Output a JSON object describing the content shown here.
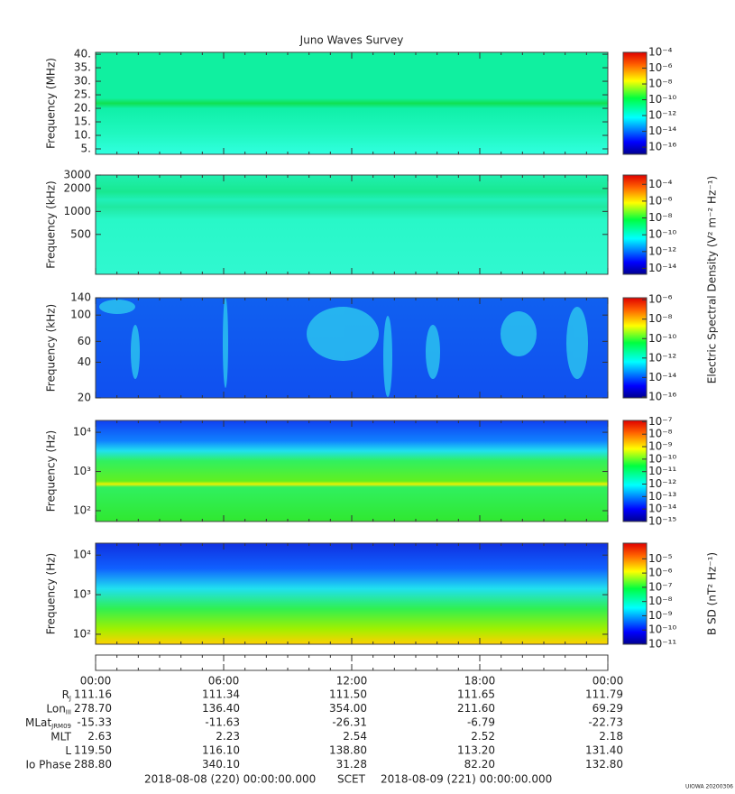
{
  "chart_data": {
    "type": "spectrogram",
    "title": "Juno Waves Survey",
    "xlim": [
      0,
      24
    ],
    "xticks": [
      {
        "value": 0,
        "label": "00:00"
      },
      {
        "value": 6,
        "label": "06:00"
      },
      {
        "value": 12,
        "label": "12:00"
      },
      {
        "value": 18,
        "label": "18:00"
      },
      {
        "value": 24,
        "label": "00:00"
      }
    ],
    "xminor_step": 1,
    "panels": [
      {
        "ylabel": "Frequency (MHz)",
        "yscale": "linear",
        "ylim": [
          3,
          40.7
        ],
        "yticks": [
          {
            "value": 5,
            "label": "5."
          },
          {
            "value": 10,
            "label": "10."
          },
          {
            "value": 15,
            "label": "15."
          },
          {
            "value": 20,
            "label": "20."
          },
          {
            "value": 25,
            "label": "25."
          },
          {
            "value": 30,
            "label": "30."
          },
          {
            "value": 35,
            "label": "35."
          },
          {
            "value": 40,
            "label": "40."
          }
        ],
        "clim": [
          -16.9,
          -4
        ],
        "cticks": [
          {
            "value": -4,
            "label": "10⁻⁴"
          },
          {
            "value": -6,
            "label": "10⁻⁶"
          },
          {
            "value": -8,
            "label": "10⁻⁸"
          },
          {
            "value": -10,
            "label": "10⁻¹⁰"
          },
          {
            "value": -12,
            "label": "10⁻¹²"
          },
          {
            "value": -14,
            "label": "10⁻¹⁴"
          },
          {
            "value": -16,
            "label": "10⁻¹⁶"
          }
        ]
      },
      {
        "ylabel": "Frequency (kHz)",
        "yscale": "log",
        "ylim": [
          150,
          3000
        ],
        "yticks": [
          500,
          1000,
          2000,
          3000
        ],
        "clim": [
          -14.7,
          -2.9
        ],
        "cticks": [
          {
            "value": -4,
            "label": "10⁻⁴"
          },
          {
            "value": -6,
            "label": "10⁻⁶"
          },
          {
            "value": -8,
            "label": "10⁻⁸"
          },
          {
            "value": -10,
            "label": "10⁻¹⁰"
          },
          {
            "value": -12,
            "label": "10⁻¹²"
          },
          {
            "value": -14,
            "label": "10⁻¹⁴"
          }
        ]
      },
      {
        "ylabel": "Frequency (kHz)",
        "yscale": "log",
        "ylim": [
          20,
          140
        ],
        "yticks": [
          20,
          40,
          60,
          100,
          140
        ],
        "clim": [
          -16.1,
          -5.8
        ],
        "cticks": [
          {
            "value": -6,
            "label": "10⁻⁶"
          },
          {
            "value": -8,
            "label": "10⁻⁸"
          },
          {
            "value": -10,
            "label": "10⁻¹⁰"
          },
          {
            "value": -12,
            "label": "10⁻¹²"
          },
          {
            "value": -14,
            "label": "10⁻¹⁴"
          },
          {
            "value": -16,
            "label": "10⁻¹⁶"
          }
        ]
      },
      {
        "ylabel": "Frequency (Hz)",
        "yscale": "log",
        "ylim": [
          53,
          20000
        ],
        "yticks": [
          {
            "value": 100,
            "label": "10²"
          },
          {
            "value": 1000,
            "label": "10³"
          },
          {
            "value": 10000,
            "label": "10⁴"
          }
        ],
        "clim": [
          -15,
          -6.9
        ],
        "cticks": [
          {
            "value": -7,
            "label": "10⁻⁷"
          },
          {
            "value": -8,
            "label": "10⁻⁸"
          },
          {
            "value": -9,
            "label": "10⁻⁹"
          },
          {
            "value": -10,
            "label": "10⁻¹⁰"
          },
          {
            "value": -11,
            "label": "10⁻¹¹"
          },
          {
            "value": -12,
            "label": "10⁻¹²"
          },
          {
            "value": -13,
            "label": "10⁻¹³"
          },
          {
            "value": -14,
            "label": "10⁻¹⁴"
          },
          {
            "value": -15,
            "label": "10⁻¹⁵"
          }
        ]
      },
      {
        "ylabel": "Frequency (Hz)",
        "yscale": "log",
        "ylim": [
          56,
          20000
        ],
        "yticks": [
          {
            "value": 100,
            "label": "10²"
          },
          {
            "value": 1000,
            "label": "10³"
          },
          {
            "value": 10000,
            "label": "10⁴"
          }
        ],
        "clim": [
          -11,
          -3.9
        ],
        "cticks": [
          {
            "value": -5,
            "label": "10⁻⁵"
          },
          {
            "value": -6,
            "label": "10⁻⁶"
          },
          {
            "value": -7,
            "label": "10⁻⁷"
          },
          {
            "value": -8,
            "label": "10⁻⁸"
          },
          {
            "value": -9,
            "label": "10⁻⁹"
          },
          {
            "value": -10,
            "label": "10⁻¹⁰"
          },
          {
            "value": -11,
            "label": "10⁻¹¹"
          }
        ]
      }
    ],
    "electric_label": "Electric Spectral Density (V² m⁻² Hz⁻¹)",
    "magnetic_label": "B SD (nT² Hz⁻¹)",
    "ephemeris": [
      {
        "label": "R",
        "sub": "J",
        "values": [
          "111.16",
          "111.34",
          "111.50",
          "111.65",
          "111.79"
        ]
      },
      {
        "label": "Lon",
        "sub": "III",
        "values": [
          "278.70",
          "136.40",
          "354.00",
          "211.60",
          "69.29"
        ]
      },
      {
        "label": "MLat",
        "sub": "JRM09",
        "values": [
          "-15.33",
          "-11.63",
          "-26.31",
          "-6.79",
          "-22.73"
        ]
      },
      {
        "label": "MLT",
        "values": [
          "2.63",
          "2.23",
          "2.54",
          "2.52",
          "2.18"
        ]
      },
      {
        "label": "L",
        "values": [
          "119.50",
          "116.10",
          "138.80",
          "113.20",
          "131.40"
        ]
      },
      {
        "label": "Io Phase",
        "values": [
          "288.80",
          "340.10",
          "31.28",
          "82.20",
          "132.80"
        ]
      }
    ],
    "start": "2018-08-08 (220) 00:00:00.000",
    "scet": "SCET",
    "end": "2018-08-09 (221) 00:00:00.000",
    "stamp": "UIOWA 20200306"
  }
}
